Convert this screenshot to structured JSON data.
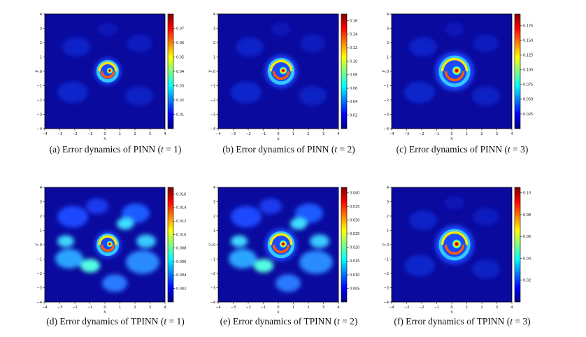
{
  "figure": {
    "colormap": [
      "#00007f",
      "#0000ff",
      "#007fff",
      "#00ffff",
      "#7fff7f",
      "#ffff00",
      "#ff7f00",
      "#ff0000",
      "#7f0000"
    ],
    "panels": [
      {
        "id": "a",
        "caption_prefix": "(a) Error dynamics of PINN (",
        "caption_var": "t",
        "caption_suffix": " = 1)",
        "spiral": "small",
        "chart_data": {
          "type": "heatmap",
          "xlabel": "x",
          "ylabel": "y",
          "xlim": [
            -4,
            4
          ],
          "ylim": [
            -4,
            4
          ],
          "xticks": [
            "−4",
            "−3",
            "−2",
            "−1",
            "0",
            "1",
            "2",
            "3",
            "4"
          ],
          "yticks": [
            "4",
            "3",
            "2",
            "1",
            "0",
            "−1",
            "−2",
            "−3",
            "−4"
          ],
          "colorbar": {
            "min": 0,
            "max": 0.08,
            "ticks": [
              0.01,
              0.02,
              0.03,
              0.04,
              0.05,
              0.06,
              0.07
            ],
            "labels": [
              "0.01",
              "0.02",
              "0.03",
              "0.04",
              "0.05",
              "0.06",
              "0.07"
            ]
          }
        }
      },
      {
        "id": "b",
        "caption_prefix": "(b) Error dynamics of PINN (",
        "caption_var": "t",
        "caption_suffix": " = 2)",
        "spiral": "medium",
        "chart_data": {
          "type": "heatmap",
          "xlabel": "x",
          "ylabel": "y",
          "xlim": [
            -4,
            4
          ],
          "ylim": [
            -4,
            4
          ],
          "xticks": [
            "−4",
            "−3",
            "−2",
            "−1",
            "0",
            "1",
            "2",
            "3",
            "4"
          ],
          "yticks": [
            "4",
            "3",
            "2",
            "1",
            "0",
            "−1",
            "−2",
            "−3",
            "−4"
          ],
          "colorbar": {
            "min": 0,
            "max": 0.17,
            "ticks": [
              0.02,
              0.04,
              0.06,
              0.08,
              0.1,
              0.12,
              0.14,
              0.16
            ],
            "labels": [
              "0.02",
              "0.04",
              "0.06",
              "0.08",
              "0.10",
              "0.12",
              "0.14",
              "0.16"
            ]
          }
        }
      },
      {
        "id": "c",
        "caption_prefix": "(c) Error dynamics of PINN (",
        "caption_var": "t",
        "caption_suffix": " = 3)",
        "spiral": "large",
        "chart_data": {
          "type": "heatmap",
          "xlabel": "x",
          "ylabel": "y",
          "xlim": [
            -4,
            4
          ],
          "ylim": [
            -4,
            4
          ],
          "xticks": [
            "−4",
            "−3",
            "−2",
            "−1",
            "0",
            "1",
            "2",
            "3",
            "4"
          ],
          "yticks": [
            "4",
            "3",
            "2",
            "1",
            "0",
            "−1",
            "−2",
            "−3",
            "−4"
          ],
          "colorbar": {
            "min": 0,
            "max": 0.195,
            "ticks": [
              0.025,
              0.05,
              0.075,
              0.1,
              0.125,
              0.15,
              0.175
            ],
            "labels": [
              "0.025",
              "0.050",
              "0.075",
              "0.100",
              "0.125",
              "0.150",
              "0.175"
            ]
          }
        }
      },
      {
        "id": "d",
        "caption_prefix": "(d) Error dynamics of TPINN (",
        "caption_var": "t",
        "caption_suffix": " = 1)",
        "spiral": "noisy",
        "chart_data": {
          "type": "heatmap",
          "xlabel": "x",
          "ylabel": "y",
          "xlim": [
            -4,
            4
          ],
          "ylim": [
            -4,
            4
          ],
          "xticks": [
            "−4",
            "−3",
            "−2",
            "−1",
            "0",
            "1",
            "2",
            "3",
            "4"
          ],
          "yticks": [
            "4",
            "3",
            "2",
            "1",
            "0",
            "−1",
            "−2",
            "−3",
            "−4"
          ],
          "colorbar": {
            "min": 0,
            "max": 0.017,
            "ticks": [
              0.002,
              0.004,
              0.006,
              0.008,
              0.01,
              0.012,
              0.014,
              0.016
            ],
            "labels": [
              "0.002",
              "0.004",
              "0.006",
              "0.008",
              "0.010",
              "0.012",
              "0.014",
              "0.016"
            ]
          }
        }
      },
      {
        "id": "e",
        "caption_prefix": "(e) Error dynamics of TPINN (",
        "caption_var": "t",
        "caption_suffix": " = 2)",
        "spiral": "medium-noisy",
        "chart_data": {
          "type": "heatmap",
          "xlabel": "x",
          "ylabel": "y",
          "xlim": [
            -4,
            4
          ],
          "ylim": [
            -4,
            4
          ],
          "xticks": [
            "−4",
            "−3",
            "−2",
            "−1",
            "0",
            "1",
            "2",
            "3",
            "4"
          ],
          "yticks": [
            "4",
            "3",
            "2",
            "1",
            "0",
            "−1",
            "−2",
            "−3",
            "−4"
          ],
          "colorbar": {
            "min": 0,
            "max": 0.042,
            "ticks": [
              0.005,
              0.01,
              0.015,
              0.02,
              0.025,
              0.03,
              0.035,
              0.04
            ],
            "labels": [
              "0.005",
              "0.010",
              "0.015",
              "0.020",
              "0.025",
              "0.030",
              "0.035",
              "0.040"
            ]
          }
        }
      },
      {
        "id": "f",
        "caption_prefix": "(f) Error dynamics of TPINN (",
        "caption_var": "t",
        "caption_suffix": " = 3)",
        "spiral": "large",
        "chart_data": {
          "type": "heatmap",
          "xlabel": "x",
          "ylabel": "y",
          "xlim": [
            -4,
            4
          ],
          "ylim": [
            -4,
            4
          ],
          "xticks": [
            "−4",
            "−3",
            "−2",
            "−1",
            "0",
            "1",
            "2",
            "3",
            "4"
          ],
          "yticks": [
            "4",
            "3",
            "2",
            "1",
            "0",
            "−1",
            "−2",
            "−3",
            "−4"
          ],
          "colorbar": {
            "min": 0,
            "max": 0.105,
            "ticks": [
              0.02,
              0.04,
              0.06,
              0.08,
              0.1
            ],
            "labels": [
              "0.02",
              "0.04",
              "0.06",
              "0.08",
              "0.10"
            ]
          }
        }
      }
    ]
  }
}
